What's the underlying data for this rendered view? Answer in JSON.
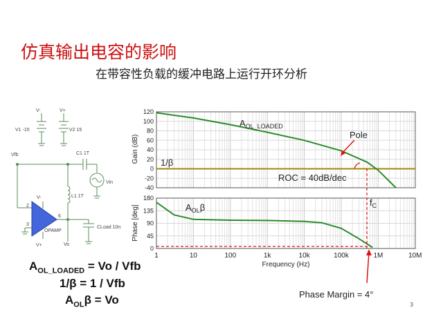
{
  "title": "仿真输出电容的影响",
  "subtitle": "在带容性负载的缓冲电路上运行开环分析",
  "page_number": "3",
  "colors": {
    "title": "#cc1010",
    "curve": "#2a8a2a",
    "beta_line": "#a08a00",
    "red": "#dd1111"
  },
  "circuit": {
    "v1_top": "V-",
    "v1_label": "V1 -15",
    "v2_top": "V+",
    "v2_label": "V2 15",
    "vfb": "Vfb",
    "c1": "C1 1T",
    "vin": "Vin",
    "l1": "L1 1T",
    "vminus": "V-",
    "pin2": "2",
    "pin3": "3",
    "pin6": "6",
    "opamp": "OPAMP",
    "vplus": "V+",
    "vo": "Vo",
    "cload": "CLoad 10n"
  },
  "equations": {
    "eq1": {
      "main": "A",
      "sub": "OL_LOADED",
      "rest": " = Vo / Vfb"
    },
    "eq2": {
      "text": "1/β  = 1 / Vfb"
    },
    "eq3": {
      "main": "A",
      "sub": "OL",
      "rest": "β = Vo"
    }
  },
  "chart_data": [
    {
      "type": "line",
      "ylabel": "Gain (dB)",
      "ylim": [
        -40,
        120
      ],
      "yticks": [
        "120",
        "100",
        "80",
        "60",
        "40",
        "20",
        "0",
        "-20",
        "-40"
      ],
      "series": [
        {
          "name": "AOL_LOADED",
          "x": [
            1,
            10,
            100,
            1000,
            10000,
            100000,
            500000,
            1000000,
            3000000
          ],
          "values": [
            118,
            107,
            93,
            77,
            60,
            38,
            14,
            -3,
            -40
          ]
        },
        {
          "name": "1/β",
          "x": [
            1,
            10000000
          ],
          "values": [
            0,
            0
          ]
        }
      ],
      "annotations": {
        "curve_label_main": "A",
        "curve_label_sub": "OL_LOADED",
        "beta": "1/β",
        "pole": "Pole",
        "roc": "ROC = 40dB/dec"
      },
      "grid": true
    },
    {
      "type": "line",
      "ylabel": "Phase [deg]",
      "xlabel": "Frequency (Hz)",
      "ylim": [
        0,
        180
      ],
      "yticks": [
        "180",
        "135",
        "90",
        "45",
        "0"
      ],
      "xticks": [
        "1",
        "10",
        "100",
        "1k",
        "10k",
        "100k",
        "1M",
        "10M"
      ],
      "series": [
        {
          "name": "AOLβ",
          "x": [
            1,
            3,
            10,
            100,
            1000,
            10000,
            30000,
            100000,
            300000,
            700000
          ],
          "values": [
            165,
            120,
            104,
            101,
            100,
            97,
            92,
            72,
            35,
            4
          ]
        }
      ],
      "annotations": {
        "curve_label_main": "A",
        "curve_label_sub": "OL",
        "curve_label_rest": "β",
        "fc_main": "f",
        "fc_sub": "C",
        "phase_margin": "Phase Margin = 4°"
      },
      "grid": true
    }
  ]
}
